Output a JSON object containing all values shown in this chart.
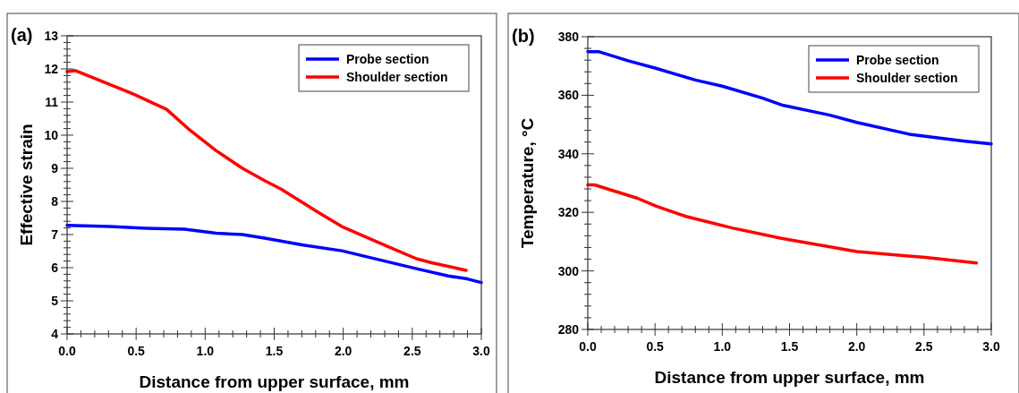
{
  "chart_data": [
    {
      "type": "line",
      "title": "(a)",
      "xlabel": "Distance from upper surface, mm",
      "ylabel": "Effective strain",
      "legend": "top right",
      "grid": false,
      "marker": "none",
      "line_style": "solid",
      "xlim": [
        0,
        3
      ],
      "ylim": [
        4,
        13
      ],
      "xticks": [
        {
          "value": 0,
          "label": "0.0"
        },
        {
          "value": 0.1,
          "label": null
        },
        {
          "value": 0.2,
          "label": null
        },
        {
          "value": 0.3,
          "label": null
        },
        {
          "value": 0.4,
          "label": null
        },
        {
          "value": 0.5,
          "label": "0.5"
        },
        {
          "value": 0.6,
          "label": null
        },
        {
          "value": 0.7,
          "label": null
        },
        {
          "value": 0.8,
          "label": null
        },
        {
          "value": 0.9,
          "label": null
        },
        {
          "value": 1,
          "label": "1.0"
        },
        {
          "value": 1.1,
          "label": null
        },
        {
          "value": 1.2,
          "label": null
        },
        {
          "value": 1.3,
          "label": null
        },
        {
          "value": 1.4,
          "label": null
        },
        {
          "value": 1.5,
          "label": "1.5"
        },
        {
          "value": 1.6,
          "label": null
        },
        {
          "value": 1.7,
          "label": null
        },
        {
          "value": 1.8,
          "label": null
        },
        {
          "value": 1.9,
          "label": null
        },
        {
          "value": 2,
          "label": "2.0"
        },
        {
          "value": 2.1,
          "label": null
        },
        {
          "value": 2.2,
          "label": null
        },
        {
          "value": 2.3,
          "label": null
        },
        {
          "value": 2.4,
          "label": null
        },
        {
          "value": 2.5,
          "label": "2.5"
        },
        {
          "value": 2.6,
          "label": null
        },
        {
          "value": 2.7,
          "label": null
        },
        {
          "value": 2.8,
          "label": null
        },
        {
          "value": 2.9,
          "label": null
        },
        {
          "value": 3,
          "label": "3.0"
        }
      ],
      "yticks": [
        4,
        {
          "value": 4.2,
          "label": null
        },
        {
          "value": 4.4,
          "label": null
        },
        {
          "value": 4.6,
          "label": null
        },
        {
          "value": 4.8,
          "label": null
        },
        5,
        {
          "value": 5.2,
          "label": null
        },
        {
          "value": 5.4,
          "label": null
        },
        {
          "value": 5.6,
          "label": null
        },
        {
          "value": 5.8,
          "label": null
        },
        6,
        {
          "value": 6.2,
          "label": null
        },
        {
          "value": 6.4,
          "label": null
        },
        {
          "value": 6.6,
          "label": null
        },
        {
          "value": 6.8,
          "label": null
        },
        7,
        {
          "value": 7.2,
          "label": null
        },
        {
          "value": 7.4,
          "label": null
        },
        {
          "value": 7.6,
          "label": null
        },
        {
          "value": 7.8,
          "label": null
        },
        8,
        {
          "value": 8.2,
          "label": null
        },
        {
          "value": 8.4,
          "label": null
        },
        {
          "value": 8.6,
          "label": null
        },
        {
          "value": 8.8,
          "label": null
        },
        9,
        {
          "value": 9.2,
          "label": null
        },
        {
          "value": 9.4,
          "label": null
        },
        {
          "value": 9.6,
          "label": null
        },
        {
          "value": 9.8,
          "label": null
        },
        10,
        {
          "value": 10.2,
          "label": null
        },
        {
          "value": 10.4,
          "label": null
        },
        {
          "value": 10.6,
          "label": null
        },
        {
          "value": 10.8,
          "label": null
        },
        11,
        {
          "value": 11.2,
          "label": null
        },
        {
          "value": 11.4,
          "label": null
        },
        {
          "value": 11.6,
          "label": null
        },
        {
          "value": 11.8,
          "label": null
        },
        12,
        {
          "value": 12.2,
          "label": null
        },
        {
          "value": 12.4,
          "label": null
        },
        {
          "value": 12.6,
          "label": null
        },
        {
          "value": 12.8,
          "label": null
        },
        13
      ],
      "series": [
        {
          "name": "Probe section",
          "color": "#0000ff",
          "x": [
            0,
            0.31,
            0.57,
            0.85,
            1.08,
            1.27,
            1.43,
            1.71,
            1.99,
            2.3,
            2.53,
            2.76,
            2.9,
            3
          ],
          "values": [
            7.28,
            7.24,
            7.19,
            7.16,
            7.04,
            7.0,
            6.89,
            6.68,
            6.51,
            6.2,
            5.97,
            5.75,
            5.66,
            5.55
          ]
        },
        {
          "name": "Shoulder section",
          "color": "#ff0000",
          "x": [
            0,
            0.06,
            0.47,
            0.72,
            0.89,
            1.08,
            1.27,
            1.43,
            1.55,
            1.83,
            1.99,
            2.3,
            2.53,
            2.64,
            2.89
          ],
          "values": [
            11.92,
            11.95,
            11.26,
            10.78,
            10.15,
            9.53,
            9.0,
            8.63,
            8.37,
            7.64,
            7.24,
            6.68,
            6.27,
            6.15,
            5.92
          ]
        }
      ]
    },
    {
      "type": "line",
      "title": "(b)",
      "xlabel": "Distance from upper surface, mm",
      "ylabel": "Temperature, °C",
      "legend": "top right",
      "grid": false,
      "marker": "none",
      "line_style": "solid",
      "xlim": [
        0,
        3
      ],
      "ylim": [
        280,
        380
      ],
      "xticks": [
        {
          "value": 0,
          "label": "0.0"
        },
        {
          "value": 0.1,
          "label": null
        },
        {
          "value": 0.2,
          "label": null
        },
        {
          "value": 0.3,
          "label": null
        },
        {
          "value": 0.4,
          "label": null
        },
        {
          "value": 0.5,
          "label": "0.5"
        },
        {
          "value": 0.6,
          "label": null
        },
        {
          "value": 0.7,
          "label": null
        },
        {
          "value": 0.8,
          "label": null
        },
        {
          "value": 0.9,
          "label": null
        },
        {
          "value": 1,
          "label": "1.0"
        },
        {
          "value": 1.1,
          "label": null
        },
        {
          "value": 1.2,
          "label": null
        },
        {
          "value": 1.3,
          "label": null
        },
        {
          "value": 1.4,
          "label": null
        },
        {
          "value": 1.5,
          "label": "1.5"
        },
        {
          "value": 1.6,
          "label": null
        },
        {
          "value": 1.7,
          "label": null
        },
        {
          "value": 1.8,
          "label": null
        },
        {
          "value": 1.9,
          "label": null
        },
        {
          "value": 2,
          "label": "2.0"
        },
        {
          "value": 2.1,
          "label": null
        },
        {
          "value": 2.2,
          "label": null
        },
        {
          "value": 2.3,
          "label": null
        },
        {
          "value": 2.4,
          "label": null
        },
        {
          "value": 2.5,
          "label": "2.5"
        },
        {
          "value": 2.6,
          "label": null
        },
        {
          "value": 2.7,
          "label": null
        },
        {
          "value": 2.8,
          "label": null
        },
        {
          "value": 2.9,
          "label": null
        },
        {
          "value": 3,
          "label": "3.0"
        }
      ],
      "yticks": [
        280,
        {
          "value": 284,
          "label": null
        },
        {
          "value": 288,
          "label": null
        },
        {
          "value": 292,
          "label": null
        },
        {
          "value": 296,
          "label": null
        },
        300,
        {
          "value": 304,
          "label": null
        },
        {
          "value": 308,
          "label": null
        },
        {
          "value": 312,
          "label": null
        },
        {
          "value": 316,
          "label": null
        },
        320,
        {
          "value": 324,
          "label": null
        },
        {
          "value": 328,
          "label": null
        },
        {
          "value": 332,
          "label": null
        },
        {
          "value": 336,
          "label": null
        },
        340,
        {
          "value": 344,
          "label": null
        },
        {
          "value": 348,
          "label": null
        },
        {
          "value": 352,
          "label": null
        },
        {
          "value": 356,
          "label": null
        },
        360,
        {
          "value": 364,
          "label": null
        },
        {
          "value": 368,
          "label": null
        },
        {
          "value": 372,
          "label": null
        },
        {
          "value": 376,
          "label": null
        },
        380
      ],
      "series": [
        {
          "name": "Probe section",
          "color": "#0000ff",
          "x": [
            0,
            0.08,
            0.3,
            0.5,
            0.8,
            1.0,
            1.3,
            1.44,
            1.8,
            2.0,
            2.39,
            2.79,
            3
          ],
          "values": [
            374.9,
            374.9,
            371.8,
            369.3,
            365.2,
            363.1,
            359.0,
            356.7,
            353.2,
            350.7,
            346.7,
            344.4,
            343.4
          ]
        },
        {
          "name": "Shoulder section",
          "color": "#ff0000",
          "x": [
            0,
            0.05,
            0.37,
            0.51,
            0.73,
            1.08,
            1.44,
            2.0,
            2.51,
            2.89
          ],
          "values": [
            329.4,
            329.4,
            324.8,
            322.1,
            318.6,
            314.6,
            311.1,
            306.6,
            304.6,
            302.7
          ]
        }
      ]
    }
  ]
}
